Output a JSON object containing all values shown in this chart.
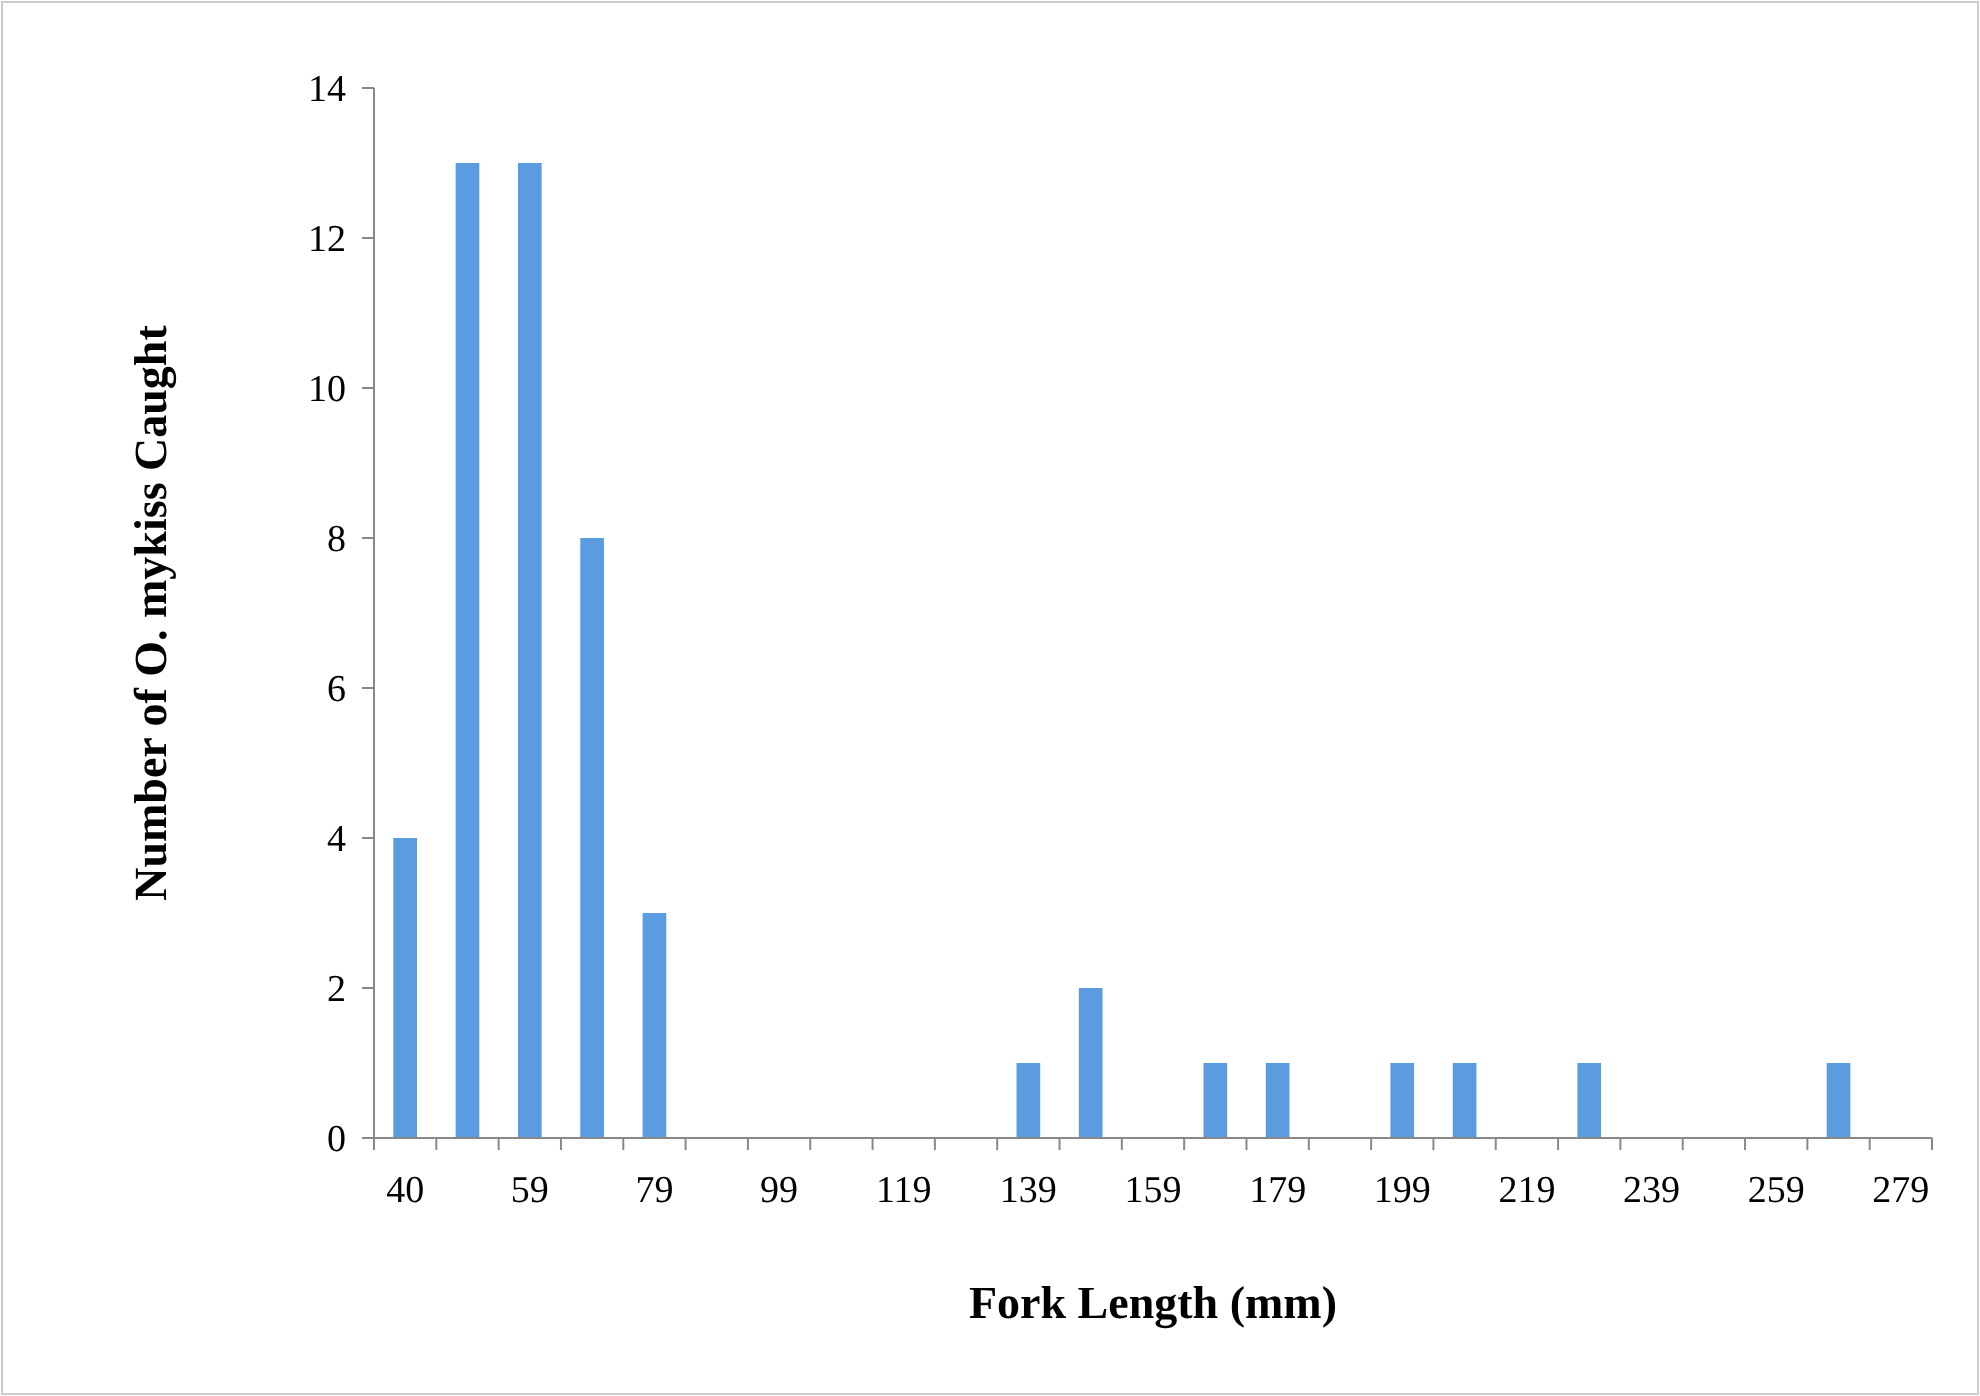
{
  "chart_data": {
    "type": "bar",
    "xlabel": "Fork Length (mm)",
    "ylabel": "Number of O. mykiss Caught",
    "categories": [
      "40",
      null,
      "59",
      null,
      "79",
      null,
      "99",
      null,
      "119",
      null,
      "139",
      null,
      "159",
      null,
      "179",
      null,
      "199",
      null,
      "219",
      null,
      "239",
      null,
      "259",
      null,
      "279"
    ],
    "values": [
      4,
      13,
      13,
      8,
      3,
      0,
      0,
      0,
      0,
      0,
      1,
      2,
      0,
      1,
      1,
      0,
      1,
      1,
      0,
      1,
      0,
      0,
      0,
      1,
      0
    ],
    "color": "#5b9be0",
    "ylim": [
      0,
      14
    ],
    "yticks": [
      0,
      2,
      4,
      6,
      8,
      10,
      12,
      14
    ],
    "grid": false
  }
}
